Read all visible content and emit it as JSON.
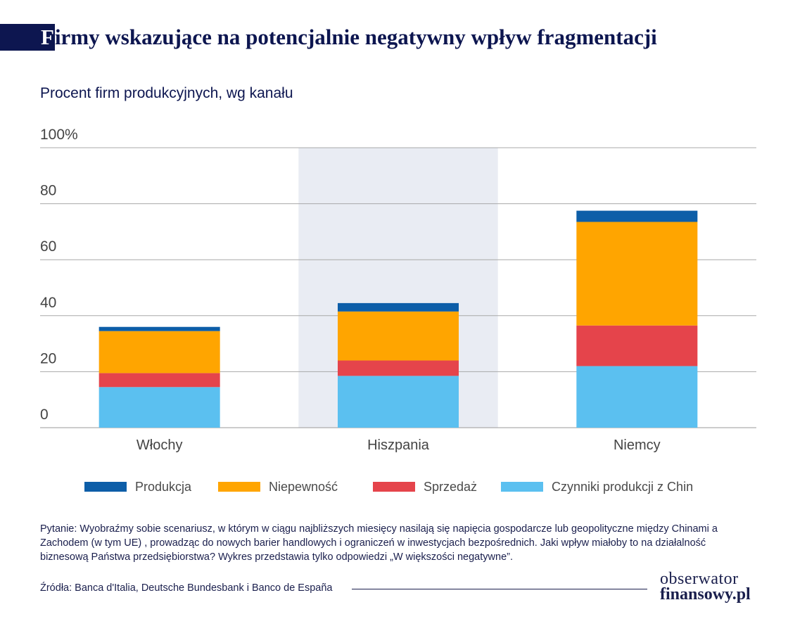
{
  "header": {
    "title_first_letter": "F",
    "title_rest": "irmy wskazujące na potencjalnie negatywny wpływ fragmentacji",
    "subtitle": "Procent firm produkcyjnych, wg kanału"
  },
  "chart_data": {
    "type": "bar",
    "stacked": true,
    "categories": [
      "Włochy",
      "Hiszpania",
      "Niemcy"
    ],
    "series": [
      {
        "name": "Czynniki produkcji z Chin",
        "color": "#5bc0f0",
        "values": [
          14.5,
          18.5,
          22
        ]
      },
      {
        "name": "Sprzedaż",
        "color": "#e5444b",
        "values": [
          5,
          5.5,
          14.5
        ]
      },
      {
        "name": "Niepewność",
        "color": "#ffa500",
        "values": [
          15,
          17.5,
          37
        ]
      },
      {
        "name": "Produkcja",
        "color": "#0d5ea8",
        "values": [
          1.5,
          3,
          4
        ]
      }
    ],
    "y_ticks": [
      "0",
      "20",
      "40",
      "60",
      "80",
      "100%"
    ],
    "ylim": [
      0,
      100
    ],
    "grid": true,
    "highlighted_category": "Hiszpania",
    "highlight_color": "#e9ecf3",
    "legend_position": "bottom",
    "legend_order": [
      "Produkcja",
      "Niepewność",
      "Sprzedaż",
      "Czynniki produkcji z Chin"
    ]
  },
  "footer": {
    "note": "Pytanie: Wyobraźmy sobie scenariusz, w którym w ciągu najbliższych miesięcy nasilają się napięcia gospodarcze lub geopolityczne między Chinami a Zachodem (w tym UE) , prowadząc do nowych barier handlowych i ograniczeń w inwestycjach bezpośrednich. Jaki wpływ miałoby to na działalność biznesową Państwa przedsiębiorstwa? Wykres przedstawia tylko odpowiedzi „W większości negatywne”.",
    "source": "Źródła: Banca d'Italia, Deutsche Bundesbank i Banco de España"
  },
  "logo": {
    "line1": "obserwator",
    "line2": "finansowy.pl"
  }
}
